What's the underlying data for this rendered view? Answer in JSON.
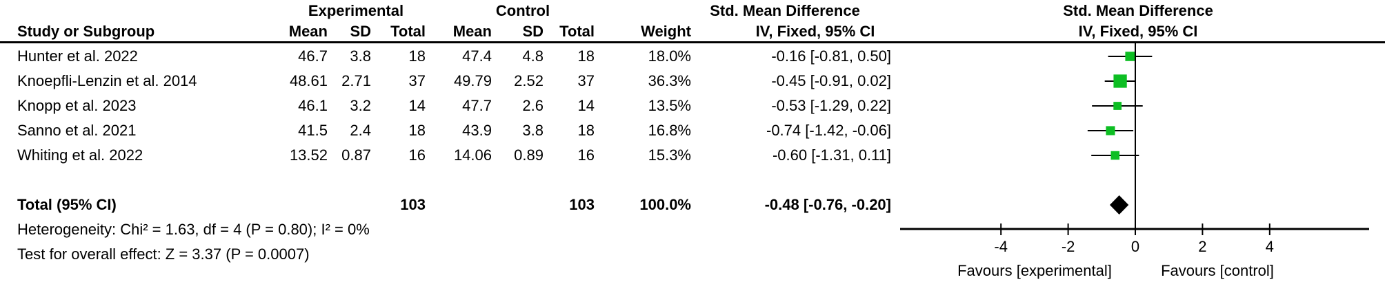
{
  "header": {
    "group_experimental": "Experimental",
    "group_control": "Control",
    "smd_text_col_line1": "Std. Mean Difference",
    "smd_text_col_line2": "IV, Fixed, 95% CI",
    "smd_plot_col_line1": "Std. Mean Difference",
    "smd_plot_col_line2": "IV, Fixed, 95% CI",
    "study": "Study or Subgroup",
    "mean_e": "Mean",
    "sd_e": "SD",
    "total_e": "Total",
    "mean_c": "Mean",
    "sd_c": "SD",
    "total_c": "Total",
    "weight": "Weight"
  },
  "rows": [
    {
      "study": "Hunter et al. 2022",
      "mean_e": "46.7",
      "sd_e": "3.8",
      "total_e": "18",
      "mean_c": "47.4",
      "sd_c": "4.8",
      "total_c": "18",
      "weight": "18.0%",
      "ci": "-0.16 [-0.81, 0.50]"
    },
    {
      "study": "Knoepfli-Lenzin et al. 2014",
      "mean_e": "48.61",
      "sd_e": "2.71",
      "total_e": "37",
      "mean_c": "49.79",
      "sd_c": "2.52",
      "total_c": "37",
      "weight": "36.3%",
      "ci": "-0.45 [-0.91, 0.02]"
    },
    {
      "study": "Knopp et al. 2023",
      "mean_e": "46.1",
      "sd_e": "3.2",
      "total_e": "14",
      "mean_c": "47.7",
      "sd_c": "2.6",
      "total_c": "14",
      "weight": "13.5%",
      "ci": "-0.53 [-1.29, 0.22]"
    },
    {
      "study": "Sanno et al. 2021",
      "mean_e": "41.5",
      "sd_e": "2.4",
      "total_e": "18",
      "mean_c": "43.9",
      "sd_c": "3.8",
      "total_c": "18",
      "weight": "16.8%",
      "ci": "-0.74 [-1.42, -0.06]"
    },
    {
      "study": "Whiting et al. 2022",
      "mean_e": "13.52",
      "sd_e": "0.87",
      "total_e": "16",
      "mean_c": "14.06",
      "sd_c": "0.89",
      "total_c": "16",
      "weight": "15.3%",
      "ci": "-0.60 [-1.31, 0.11]"
    }
  ],
  "total": {
    "label": "Total (95% CI)",
    "total_e": "103",
    "total_c": "103",
    "weight": "100.0%",
    "ci": "-0.48 [-0.76, -0.20]"
  },
  "footer": {
    "heterogeneity": "Heterogeneity: Chi² = 1.63, df = 4 (P = 0.80); I² = 0%",
    "overall_effect": "Test for overall effect: Z = 3.37 (P = 0.0007)"
  },
  "chart_data": {
    "type": "scatter",
    "subtype": "forest_plot",
    "title": "Std. Mean Difference",
    "effect_model": "IV, Fixed, 95% CI",
    "studies": [
      {
        "name": "Hunter et al. 2022",
        "smd": -0.16,
        "ci_low": -0.81,
        "ci_high": 0.5,
        "weight_pct": 18.0
      },
      {
        "name": "Knoepfli-Lenzin et al. 2014",
        "smd": -0.45,
        "ci_low": -0.91,
        "ci_high": 0.02,
        "weight_pct": 36.3
      },
      {
        "name": "Knopp et al. 2023",
        "smd": -0.53,
        "ci_low": -1.29,
        "ci_high": 0.22,
        "weight_pct": 13.5
      },
      {
        "name": "Sanno et al. 2021",
        "smd": -0.74,
        "ci_low": -1.42,
        "ci_high": -0.06,
        "weight_pct": 16.8
      },
      {
        "name": "Whiting et al. 2022",
        "smd": -0.6,
        "ci_low": -1.31,
        "ci_high": 0.11,
        "weight_pct": 15.3
      }
    ],
    "total": {
      "smd": -0.48,
      "ci_low": -0.76,
      "ci_high": -0.2
    },
    "xticks": [
      -4,
      -2,
      0,
      2,
      4
    ],
    "xlim": [
      -7,
      7
    ],
    "grid": false,
    "marker_color": "#0dbe23",
    "diamond_color": "#000000",
    "x_axis_labels": {
      "left": "Favours [experimental]",
      "right": "Favours [control]"
    }
  }
}
